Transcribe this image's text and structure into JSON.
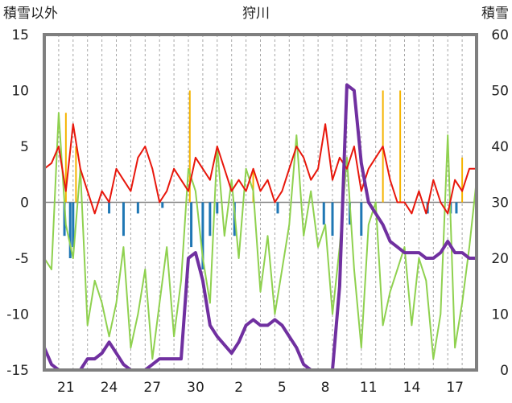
{
  "chart_data": {
    "type": "line",
    "title": "狩川",
    "y_left_label": "積雪以外",
    "y_right_label": "積雪",
    "y_left_range": [
      -15,
      15
    ],
    "y_right_range": [
      0,
      60
    ],
    "y_left_ticks": [
      "15",
      "10",
      "5",
      "0",
      "-5",
      "-10",
      "-15"
    ],
    "y_right_ticks": [
      "60",
      "50",
      "40",
      "30",
      "20",
      "10",
      "0"
    ],
    "x_range": [
      0,
      30
    ],
    "x_ticks": [
      {
        "x": 1.5,
        "label": "21"
      },
      {
        "x": 4.5,
        "label": "24"
      },
      {
        "x": 7.5,
        "label": "27"
      },
      {
        "x": 10.5,
        "label": "30"
      },
      {
        "x": 13.5,
        "label": "2"
      },
      {
        "x": 16.5,
        "label": "5"
      },
      {
        "x": 19.5,
        "label": "8"
      },
      {
        "x": 22.5,
        "label": "11"
      },
      {
        "x": 25.5,
        "label": "14"
      },
      {
        "x": 28.5,
        "label": "17"
      }
    ],
    "grid": "vertical dashed lines each day, solid zero line",
    "colors": {
      "temperature_max": "#e8170c",
      "temperature_min": "#8fd14f",
      "precipitation": "#f5b400",
      "negative_bars": "#1f77b4",
      "snow_depth": "#7030a0",
      "frame": "#7f7f7f",
      "grid": "#a6a6a6"
    },
    "series": [
      {
        "key": "red",
        "axis": "left",
        "points": [
          [
            0,
            3
          ],
          [
            0.5,
            3.5
          ],
          [
            1,
            5
          ],
          [
            1.5,
            1
          ],
          [
            2,
            7
          ],
          [
            2.5,
            3
          ],
          [
            3,
            1
          ],
          [
            3.5,
            -1
          ],
          [
            4,
            1
          ],
          [
            4.5,
            0
          ],
          [
            5,
            3
          ],
          [
            5.5,
            2
          ],
          [
            6,
            1
          ],
          [
            6.5,
            4
          ],
          [
            7,
            5
          ],
          [
            7.5,
            3
          ],
          [
            8,
            0
          ],
          [
            8.5,
            1
          ],
          [
            9,
            3
          ],
          [
            9.5,
            2
          ],
          [
            10,
            1
          ],
          [
            10.5,
            4
          ],
          [
            11,
            3
          ],
          [
            11.5,
            2
          ],
          [
            12,
            5
          ],
          [
            12.5,
            3
          ],
          [
            13,
            1
          ],
          [
            13.5,
            2
          ],
          [
            14,
            1
          ],
          [
            14.5,
            3
          ],
          [
            15,
            1
          ],
          [
            15.5,
            2
          ],
          [
            16,
            0
          ],
          [
            16.5,
            1
          ],
          [
            17,
            3
          ],
          [
            17.5,
            5
          ],
          [
            18,
            4
          ],
          [
            18.5,
            2
          ],
          [
            19,
            3
          ],
          [
            19.5,
            7
          ],
          [
            20,
            2
          ],
          [
            20.5,
            4
          ],
          [
            21,
            3
          ],
          [
            21.5,
            5
          ],
          [
            22,
            1
          ],
          [
            22.5,
            3
          ],
          [
            23,
            4
          ],
          [
            23.5,
            5
          ],
          [
            24,
            2
          ],
          [
            24.5,
            0
          ],
          [
            25,
            0
          ],
          [
            25.5,
            -1
          ],
          [
            26,
            1
          ],
          [
            26.5,
            -1
          ],
          [
            27,
            2
          ],
          [
            27.5,
            0
          ],
          [
            28,
            -1
          ],
          [
            28.5,
            2
          ],
          [
            29,
            1
          ],
          [
            29.5,
            3
          ],
          [
            30,
            3
          ]
        ]
      },
      {
        "key": "green",
        "axis": "left",
        "points": [
          [
            0,
            -5
          ],
          [
            0.5,
            -6
          ],
          [
            1,
            8
          ],
          [
            1.5,
            -2
          ],
          [
            2,
            -5
          ],
          [
            2.5,
            3
          ],
          [
            3,
            -11
          ],
          [
            3.5,
            -7
          ],
          [
            4,
            -9
          ],
          [
            4.5,
            -12
          ],
          [
            5,
            -9
          ],
          [
            5.5,
            -4
          ],
          [
            6,
            -13
          ],
          [
            6.5,
            -10
          ],
          [
            7,
            -6
          ],
          [
            7.5,
            -14
          ],
          [
            8,
            -9
          ],
          [
            8.5,
            -4
          ],
          [
            9,
            -12
          ],
          [
            9.5,
            -7
          ],
          [
            10,
            3
          ],
          [
            10.5,
            1
          ],
          [
            11,
            -5
          ],
          [
            11.5,
            -9
          ],
          [
            12,
            5
          ],
          [
            12.5,
            -3
          ],
          [
            13,
            2
          ],
          [
            13.5,
            -5
          ],
          [
            14,
            3
          ],
          [
            14.5,
            1
          ],
          [
            15,
            -8
          ],
          [
            15.5,
            -3
          ],
          [
            16,
            -10
          ],
          [
            16.5,
            -6
          ],
          [
            17,
            -2
          ],
          [
            17.5,
            6
          ],
          [
            18,
            -3
          ],
          [
            18.5,
            1
          ],
          [
            19,
            -4
          ],
          [
            19.5,
            -2
          ],
          [
            20,
            -10
          ],
          [
            20.5,
            -4
          ],
          [
            21,
            4
          ],
          [
            21.5,
            -6
          ],
          [
            22,
            -13
          ],
          [
            22.5,
            -2
          ],
          [
            23,
            0
          ],
          [
            23.5,
            -11
          ],
          [
            24,
            -8
          ],
          [
            24.5,
            -6
          ],
          [
            25,
            -4
          ],
          [
            25.5,
            -11
          ],
          [
            26,
            -5
          ],
          [
            26.5,
            -7
          ],
          [
            27,
            -14
          ],
          [
            27.5,
            -10
          ],
          [
            28,
            6
          ],
          [
            28.5,
            -13
          ],
          [
            29,
            -9
          ],
          [
            29.5,
            -4
          ],
          [
            30,
            2
          ]
        ]
      },
      {
        "key": "purple",
        "axis": "right",
        "points": [
          [
            0,
            4
          ],
          [
            0.5,
            1
          ],
          [
            1,
            0
          ],
          [
            2,
            0
          ],
          [
            2.5,
            0
          ],
          [
            3,
            2
          ],
          [
            3.5,
            2
          ],
          [
            4,
            3
          ],
          [
            4.5,
            5
          ],
          [
            5,
            3
          ],
          [
            5.5,
            1
          ],
          [
            6,
            0
          ],
          [
            7,
            0
          ],
          [
            7.5,
            1
          ],
          [
            8,
            2
          ],
          [
            9,
            2
          ],
          [
            9.5,
            2
          ],
          [
            10,
            20
          ],
          [
            10.5,
            21
          ],
          [
            11,
            16
          ],
          [
            11.5,
            8
          ],
          [
            12,
            6
          ],
          [
            13,
            3
          ],
          [
            13.5,
            5
          ],
          [
            14,
            8
          ],
          [
            14.5,
            9
          ],
          [
            15,
            8
          ],
          [
            15.5,
            8
          ],
          [
            16,
            9
          ],
          [
            16.5,
            8
          ],
          [
            17,
            6
          ],
          [
            17.5,
            4
          ],
          [
            18,
            1
          ],
          [
            18.5,
            0
          ],
          [
            20,
            0
          ],
          [
            20.5,
            15
          ],
          [
            21,
            51
          ],
          [
            21.5,
            50
          ],
          [
            22,
            37
          ],
          [
            22.5,
            30
          ],
          [
            23,
            28
          ],
          [
            23.5,
            26
          ],
          [
            24,
            23
          ],
          [
            24.5,
            22
          ],
          [
            25,
            21
          ],
          [
            25.5,
            21
          ],
          [
            26,
            21
          ],
          [
            26.5,
            20
          ],
          [
            27,
            20
          ],
          [
            27.5,
            21
          ],
          [
            28,
            23
          ],
          [
            28.5,
            21
          ],
          [
            29,
            21
          ],
          [
            29.5,
            20
          ],
          [
            30,
            20
          ]
        ]
      }
    ],
    "precipitation_spikes": [
      [
        1.5,
        8
      ],
      [
        2.2,
        5
      ],
      [
        10.1,
        10
      ],
      [
        14.5,
        3
      ],
      [
        23.5,
        10
      ],
      [
        24.7,
        10
      ],
      [
        29,
        4
      ]
    ],
    "negative_bars": [
      [
        1.4,
        -3
      ],
      [
        1.8,
        -5
      ],
      [
        2.0,
        -4
      ],
      [
        4.5,
        -1
      ],
      [
        5.5,
        -3
      ],
      [
        6.5,
        -1
      ],
      [
        8.2,
        -0.5
      ],
      [
        10.2,
        -4
      ],
      [
        11.0,
        -6
      ],
      [
        11.5,
        -3
      ],
      [
        12.0,
        -1
      ],
      [
        13.2,
        -3
      ],
      [
        16.2,
        -1
      ],
      [
        19.4,
        -2
      ],
      [
        20.0,
        -3
      ],
      [
        21.2,
        -2
      ],
      [
        22.0,
        -3
      ],
      [
        26.6,
        -1
      ],
      [
        28.2,
        -1
      ],
      [
        28.6,
        -1
      ]
    ]
  }
}
